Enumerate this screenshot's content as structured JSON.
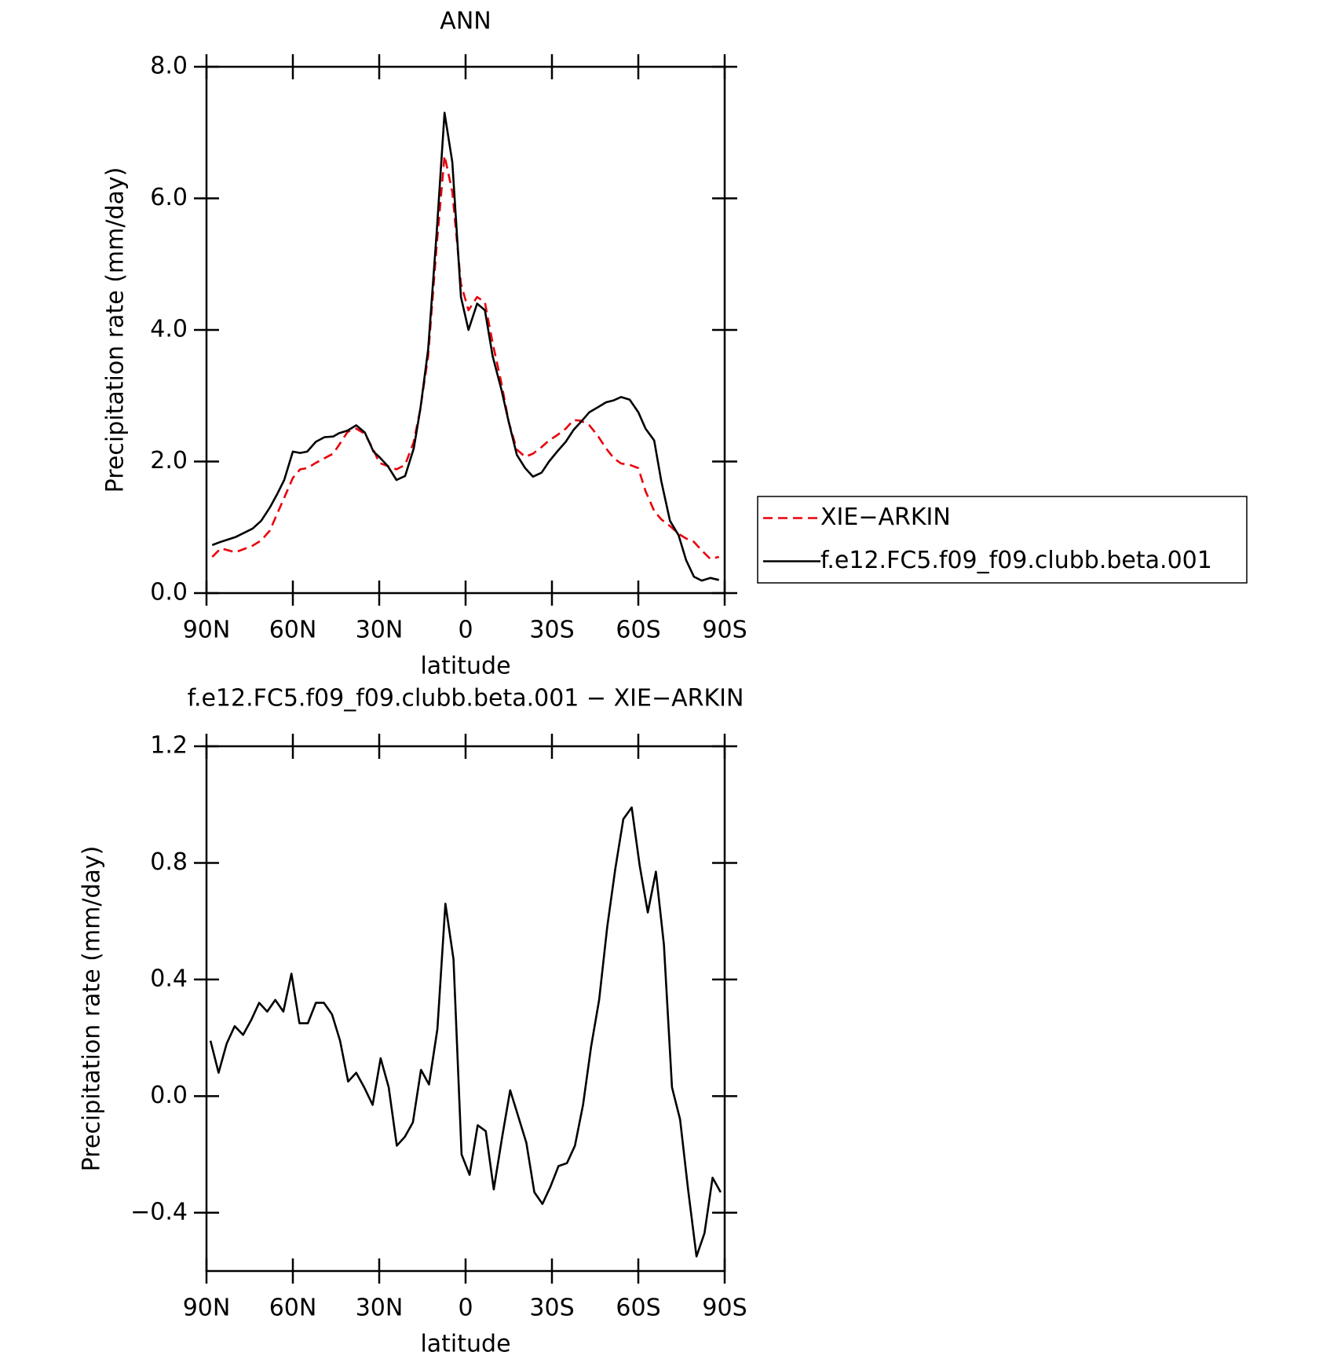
{
  "chart_data": [
    {
      "type": "line",
      "title": "ANN",
      "xlabel": "latitude",
      "ylabel": "Precipitation rate (mm/day)",
      "x": [
        88,
        85,
        80,
        74,
        71,
        68,
        65.5,
        63,
        60,
        57.5,
        55,
        52,
        49,
        46,
        44,
        41,
        38,
        35,
        32,
        30,
        27,
        24,
        21,
        18,
        15.7,
        13,
        10,
        7.3,
        4.6,
        1.6,
        -1,
        -4,
        -6.7,
        -9.4,
        -12.4,
        -15,
        -17.8,
        -20.7,
        -23.4,
        -26.4,
        -29,
        -31.8,
        -34.8,
        -37.5,
        -40,
        -43,
        -45.8,
        -48.8,
        -51.5,
        -54,
        -57,
        -60,
        -62.5,
        -65.5,
        -68,
        -71,
        -74,
        -76.6,
        -79.3,
        -82,
        -85,
        -88
      ],
      "series": [
        {
          "name": "XIE−ARKIN",
          "color": "#e8000b",
          "line_style": "dashed",
          "values": [
            0.55,
            0.68,
            0.62,
            0.72,
            0.8,
            0.95,
            1.2,
            1.45,
            1.75,
            1.88,
            1.9,
            1.98,
            2.05,
            2.12,
            2.25,
            2.45,
            2.5,
            2.42,
            2.18,
            1.98,
            1.93,
            1.88,
            1.95,
            2.3,
            2.8,
            3.6,
            5.3,
            6.65,
            6.1,
            4.7,
            4.3,
            4.5,
            4.42,
            3.8,
            3.2,
            2.6,
            2.18,
            2.07,
            2.12,
            2.22,
            2.32,
            2.4,
            2.5,
            2.63,
            2.62,
            2.55,
            2.4,
            2.2,
            2.05,
            1.97,
            1.95,
            1.9,
            1.55,
            1.25,
            1.12,
            1.02,
            0.9,
            0.83,
            0.78,
            0.65,
            0.52,
            0.55
          ]
        },
        {
          "name": "f.e12.FC5.f09_f09.clubb.beta.001",
          "color": "#000000",
          "line_style": "solid",
          "values": [
            0.73,
            0.78,
            0.85,
            0.98,
            1.1,
            1.3,
            1.5,
            1.72,
            2.15,
            2.13,
            2.15,
            2.3,
            2.37,
            2.38,
            2.43,
            2.47,
            2.55,
            2.44,
            2.15,
            2.07,
            1.93,
            1.72,
            1.78,
            2.2,
            2.8,
            3.7,
            5.5,
            7.3,
            6.55,
            4.5,
            4.0,
            4.4,
            4.3,
            3.6,
            3.1,
            2.6,
            2.1,
            1.9,
            1.77,
            1.83,
            2.0,
            2.15,
            2.3,
            2.48,
            2.6,
            2.75,
            2.82,
            2.9,
            2.93,
            2.98,
            2.94,
            2.75,
            2.5,
            2.32,
            1.7,
            1.1,
            0.88,
            0.5,
            0.25,
            0.19,
            0.23,
            0.2
          ]
        }
      ],
      "xlim": [
        90,
        -90
      ],
      "xticks": [
        {
          "value": 90,
          "label": "90N"
        },
        {
          "value": 60,
          "label": "60N"
        },
        {
          "value": 30,
          "label": "30N"
        },
        0,
        {
          "value": -30,
          "label": "30S"
        },
        {
          "value": -60,
          "label": "60S"
        },
        {
          "value": -90,
          "label": "90S"
        }
      ],
      "ylim": [
        0,
        8
      ],
      "yticks": [
        {
          "value": 0,
          "label": "0.0"
        },
        {
          "value": 2,
          "label": "2.0"
        },
        {
          "value": 4,
          "label": "4.0"
        },
        {
          "value": 6,
          "label": "6.0"
        },
        {
          "value": 8,
          "label": "8.0"
        }
      ],
      "legend": "right"
    },
    {
      "type": "line",
      "title": "f.e12.FC5.f09_f09.clubb.beta.001 − XIE−ARKIN",
      "xlabel": "latitude",
      "ylabel": "Precipitation rate (mm/day)",
      "x": [
        88.6,
        85.8,
        83.0,
        80.2,
        77.3,
        74.5,
        71.7,
        68.9,
        66.1,
        63.3,
        60.5,
        57.7,
        54.8,
        52.0,
        49.2,
        46.4,
        43.6,
        40.8,
        38.0,
        35.2,
        32.3,
        29.5,
        26.7,
        23.9,
        21.1,
        18.3,
        15.5,
        12.7,
        9.8,
        7.0,
        4.2,
        1.4,
        -1.4,
        -4.2,
        -7.0,
        -9.8,
        -12.7,
        -15.5,
        -18.3,
        -21.1,
        -23.9,
        -26.7,
        -29.5,
        -32.3,
        -35.2,
        -38.0,
        -40.8,
        -43.6,
        -46.4,
        -49.2,
        -52.0,
        -54.8,
        -57.7,
        -60.5,
        -63.3,
        -66.1,
        -68.9,
        -71.7,
        -74.5,
        -77.3,
        -80.2,
        -83.0,
        -85.8,
        -88.6
      ],
      "values": [
        0.19,
        0.08,
        0.18,
        0.24,
        0.21,
        0.26,
        0.32,
        0.29,
        0.33,
        0.29,
        0.42,
        0.25,
        0.25,
        0.32,
        0.32,
        0.28,
        0.19,
        0.05,
        0.08,
        0.03,
        -0.03,
        0.13,
        0.03,
        -0.17,
        -0.14,
        -0.09,
        0.09,
        0.04,
        0.23,
        0.66,
        0.47,
        -0.2,
        -0.27,
        -0.1,
        -0.12,
        -0.32,
        -0.14,
        0.02,
        -0.07,
        -0.16,
        -0.33,
        -0.37,
        -0.31,
        -0.24,
        -0.23,
        -0.17,
        -0.03,
        0.17,
        0.33,
        0.58,
        0.78,
        0.95,
        0.99,
        0.79,
        0.63,
        0.77,
        0.52,
        0.03,
        -0.08,
        -0.32,
        -0.55,
        -0.47,
        -0.28,
        -0.33
      ],
      "color": "#000000",
      "xlim": [
        90,
        -90
      ],
      "xticks": [
        {
          "value": 90,
          "label": "90N"
        },
        {
          "value": 60,
          "label": "60N"
        },
        {
          "value": 30,
          "label": "30N"
        },
        0,
        {
          "value": -30,
          "label": "30S"
        },
        {
          "value": -60,
          "label": "60S"
        },
        {
          "value": -90,
          "label": "90S"
        }
      ],
      "ylim": [
        -0.6,
        1.2
      ],
      "yticks": [
        {
          "value": -0.4,
          "label": "−0.4"
        },
        {
          "value": 0,
          "label": "0.0"
        },
        {
          "value": 0.4,
          "label": "0.4"
        },
        {
          "value": 0.8,
          "label": "0.8"
        },
        {
          "value": 1.2,
          "label": "1.2"
        }
      ]
    }
  ]
}
